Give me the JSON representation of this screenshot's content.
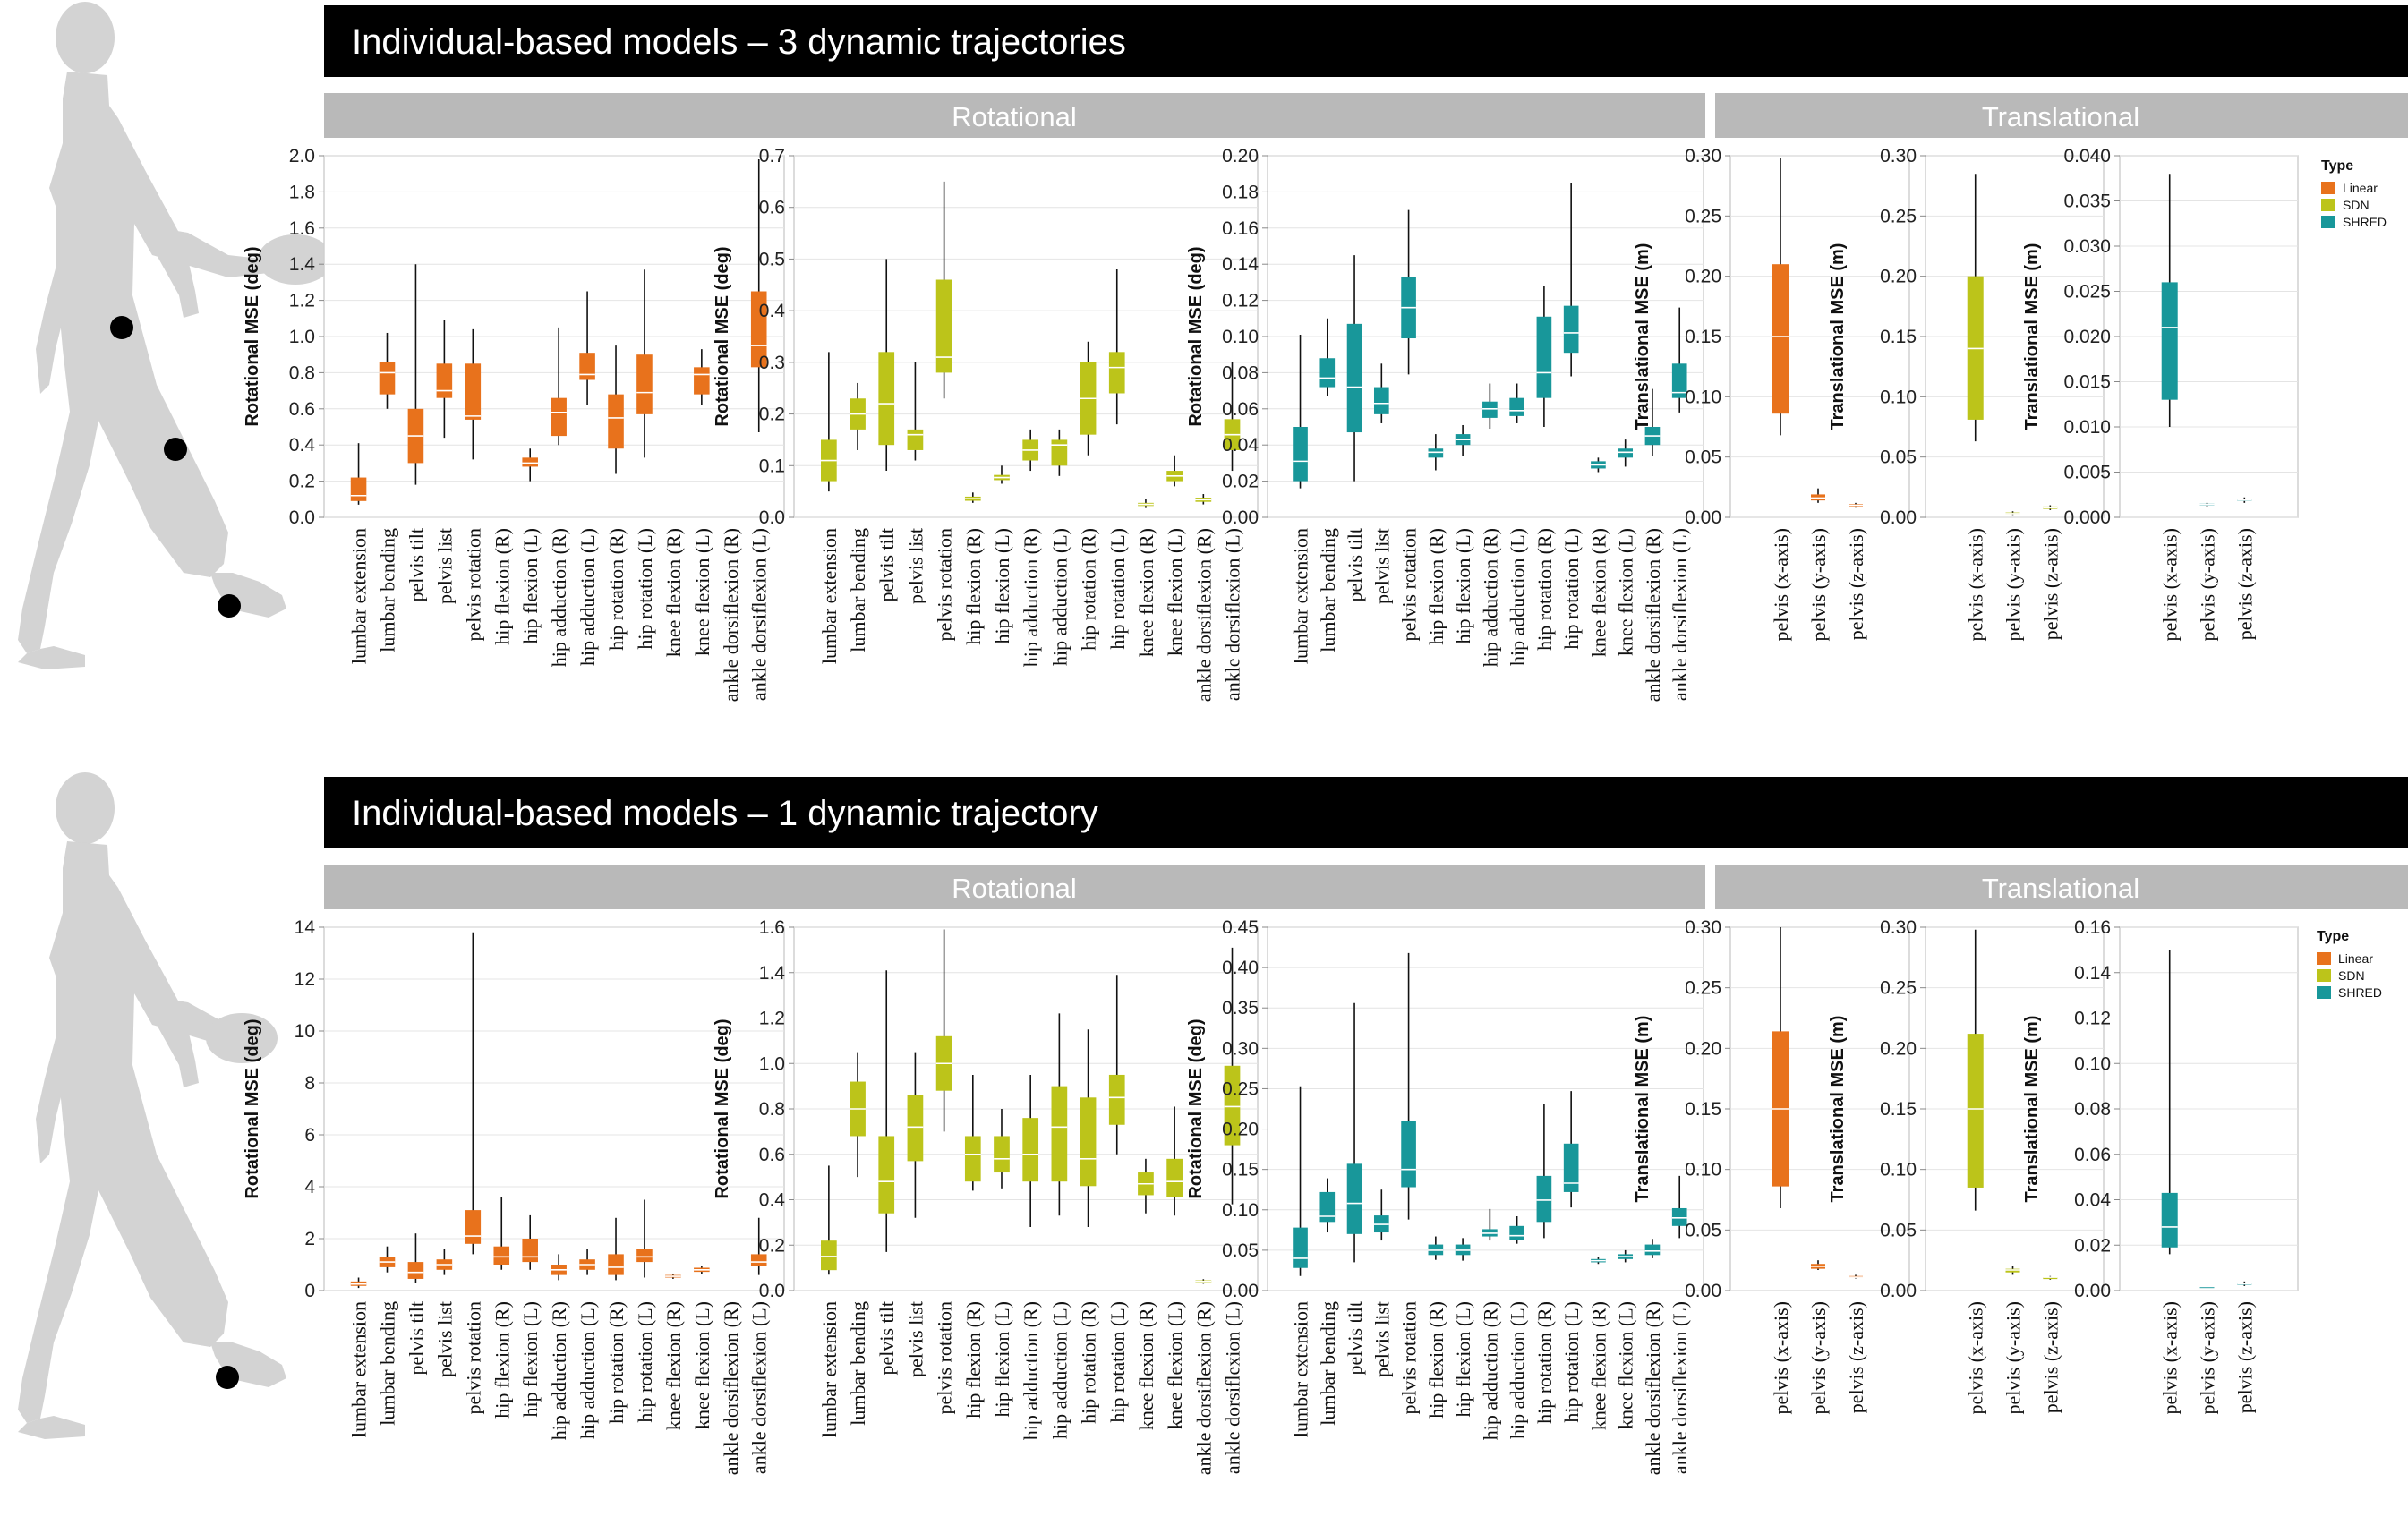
{
  "figure": {
    "title_top": "Individual-based models – 3 dynamic trajectories",
    "title_bottom": "Individual-based models – 1 dynamic trajectory",
    "band_rotational": "Rotational",
    "band_translational": "Translational"
  },
  "legend": {
    "title": "Type",
    "items": [
      {
        "label": "Linear",
        "color": "#E8721C"
      },
      {
        "label": "SDN",
        "color": "#BCC41A"
      },
      {
        "label": "SHRED",
        "color": "#18979A"
      }
    ]
  },
  "colors": {
    "Linear": "#E8721C",
    "SDN": "#BCC41A",
    "SHRED": "#18979A",
    "black_bar": "#000000",
    "gray_band": "#B9B9B9",
    "silhouette": "#D3D3D3"
  },
  "categories_rot": [
    "lumbar extension",
    "lumbar bending",
    "pelvis tilt",
    "pelvis list",
    "pelvis rotation",
    "hip flexion (R)",
    "hip flexion (L)",
    "hip adduction (R)",
    "hip adduction (L)",
    "hip rotation (R)",
    "hip rotation (L)",
    "knee flexion (R)",
    "knee flexion (L)",
    "ankle dorsiflexion (R)",
    "ankle dorsiflexion (L)"
  ],
  "categories_trans": [
    "pelvis (x-axis)",
    "pelvis (y-axis)",
    "pelvis (z-axis)"
  ],
  "chart_data": [
    {
      "type": "box",
      "group": "top",
      "kind": "rotational",
      "model": "Linear",
      "ylabel": "Rotational MSE (deg)",
      "ylim": [
        0,
        2.0
      ],
      "yticks": [
        "0.0",
        "0.2",
        "0.4",
        "0.6",
        "0.8",
        "1.0",
        "1.2",
        "1.4",
        "1.6",
        "1.8",
        "2.0"
      ],
      "boxes": [
        {
          "min": 0.07,
          "q1": 0.09,
          "med": 0.12,
          "q3": 0.22,
          "max": 0.41
        },
        {
          "min": 0.6,
          "q1": 0.68,
          "med": 0.8,
          "q3": 0.86,
          "max": 1.02
        },
        {
          "min": 0.18,
          "q1": 0.3,
          "med": 0.45,
          "q3": 0.6,
          "max": 1.4
        },
        {
          "min": 0.44,
          "q1": 0.66,
          "med": 0.7,
          "q3": 0.85,
          "max": 1.09
        },
        {
          "min": 0.32,
          "q1": 0.54,
          "med": 0.56,
          "q3": 0.85,
          "max": 1.04
        },
        null,
        {
          "min": 0.2,
          "q1": 0.28,
          "med": 0.3,
          "q3": 0.33,
          "max": 0.38
        },
        {
          "min": 0.4,
          "q1": 0.45,
          "med": 0.58,
          "q3": 0.66,
          "max": 1.05
        },
        {
          "min": 0.62,
          "q1": 0.76,
          "med": 0.79,
          "q3": 0.91,
          "max": 1.25
        },
        {
          "min": 0.24,
          "q1": 0.38,
          "med": 0.55,
          "q3": 0.68,
          "max": 0.95
        },
        {
          "min": 0.33,
          "q1": 0.57,
          "med": 0.69,
          "q3": 0.9,
          "max": 1.37
        },
        null,
        {
          "min": 0.62,
          "q1": 0.68,
          "med": 0.79,
          "q3": 0.83,
          "max": 0.93
        },
        null,
        {
          "min": 0.47,
          "q1": 0.83,
          "med": 0.95,
          "q3": 1.25,
          "max": 1.98
        }
      ]
    },
    {
      "type": "box",
      "group": "top",
      "kind": "rotational",
      "model": "SDN",
      "ylabel": "Rotational MSE (deg)",
      "ylim": [
        0,
        0.7
      ],
      "yticks": [
        "0.0",
        "0.1",
        "0.2",
        "0.3",
        "0.4",
        "0.5",
        "0.6",
        "0.7"
      ],
      "boxes": [
        {
          "min": 0.05,
          "q1": 0.07,
          "med": 0.11,
          "q3": 0.15,
          "max": 0.32
        },
        {
          "min": 0.13,
          "q1": 0.17,
          "med": 0.2,
          "q3": 0.23,
          "max": 0.26
        },
        {
          "min": 0.09,
          "q1": 0.14,
          "med": 0.22,
          "q3": 0.32,
          "max": 0.5
        },
        {
          "min": 0.11,
          "q1": 0.13,
          "med": 0.16,
          "q3": 0.17,
          "max": 0.3
        },
        {
          "min": 0.23,
          "q1": 0.28,
          "med": 0.31,
          "q3": 0.46,
          "max": 0.65
        },
        {
          "min": 0.028,
          "q1": 0.032,
          "med": 0.036,
          "q3": 0.04,
          "max": 0.048
        },
        {
          "min": 0.065,
          "q1": 0.072,
          "med": 0.077,
          "q3": 0.082,
          "max": 0.1
        },
        {
          "min": 0.09,
          "q1": 0.11,
          "med": 0.13,
          "q3": 0.15,
          "max": 0.17
        },
        {
          "min": 0.08,
          "q1": 0.1,
          "med": 0.14,
          "q3": 0.15,
          "max": 0.17
        },
        {
          "min": 0.12,
          "q1": 0.16,
          "med": 0.23,
          "q3": 0.3,
          "max": 0.34
        },
        {
          "min": 0.18,
          "q1": 0.24,
          "med": 0.29,
          "q3": 0.32,
          "max": 0.48
        },
        {
          "min": 0.018,
          "q1": 0.022,
          "med": 0.025,
          "q3": 0.028,
          "max": 0.035
        },
        {
          "min": 0.06,
          "q1": 0.07,
          "med": 0.08,
          "q3": 0.09,
          "max": 0.12
        },
        {
          "min": 0.025,
          "q1": 0.03,
          "med": 0.034,
          "q3": 0.038,
          "max": 0.045
        },
        {
          "min": 0.09,
          "q1": 0.13,
          "med": 0.16,
          "q3": 0.19,
          "max": 0.3
        }
      ]
    },
    {
      "type": "box",
      "group": "top",
      "kind": "rotational",
      "model": "SHRED",
      "ylabel": "Rotational MSE (deg)",
      "ylim": [
        0,
        0.2
      ],
      "yticks": [
        "0.00",
        "0.02",
        "0.04",
        "0.06",
        "0.08",
        "0.10",
        "0.12",
        "0.14",
        "0.16",
        "0.18",
        "0.20"
      ],
      "boxes": [
        {
          "min": 0.016,
          "q1": 0.02,
          "med": 0.031,
          "q3": 0.05,
          "max": 0.101
        },
        {
          "min": 0.067,
          "q1": 0.072,
          "med": 0.077,
          "q3": 0.088,
          "max": 0.11
        },
        {
          "min": 0.02,
          "q1": 0.047,
          "med": 0.072,
          "q3": 0.107,
          "max": 0.145
        },
        {
          "min": 0.052,
          "q1": 0.057,
          "med": 0.063,
          "q3": 0.072,
          "max": 0.085
        },
        {
          "min": 0.079,
          "q1": 0.099,
          "med": 0.116,
          "q3": 0.133,
          "max": 0.17
        },
        {
          "min": 0.026,
          "q1": 0.033,
          "med": 0.036,
          "q3": 0.038,
          "max": 0.046
        },
        {
          "min": 0.034,
          "q1": 0.04,
          "med": 0.043,
          "q3": 0.046,
          "max": 0.051
        },
        {
          "min": 0.049,
          "q1": 0.055,
          "med": 0.06,
          "q3": 0.064,
          "max": 0.074
        },
        {
          "min": 0.052,
          "q1": 0.056,
          "med": 0.059,
          "q3": 0.066,
          "max": 0.074
        },
        {
          "min": 0.05,
          "q1": 0.066,
          "med": 0.08,
          "q3": 0.111,
          "max": 0.128
        },
        {
          "min": 0.078,
          "q1": 0.091,
          "med": 0.102,
          "q3": 0.117,
          "max": 0.185
        },
        {
          "min": 0.025,
          "q1": 0.027,
          "med": 0.029,
          "q3": 0.031,
          "max": 0.033
        },
        {
          "min": 0.028,
          "q1": 0.033,
          "med": 0.036,
          "q3": 0.038,
          "max": 0.043
        },
        {
          "min": 0.034,
          "q1": 0.04,
          "med": 0.045,
          "q3": 0.05,
          "max": 0.071
        },
        {
          "min": 0.058,
          "q1": 0.066,
          "med": 0.069,
          "q3": 0.085,
          "max": 0.116
        }
      ]
    },
    {
      "type": "box",
      "group": "top",
      "kind": "translational",
      "model": "Linear",
      "ylabel": "Translational MSE (m)",
      "ylim": [
        0,
        0.3
      ],
      "yticks": [
        "0.00",
        "0.05",
        "0.10",
        "0.15",
        "0.20",
        "0.25",
        "0.30"
      ],
      "boxes": [
        {
          "min": 0.068,
          "q1": 0.086,
          "med": 0.15,
          "q3": 0.21,
          "max": 0.298
        },
        {
          "min": 0.012,
          "q1": 0.014,
          "med": 0.016,
          "q3": 0.019,
          "max": 0.024
        },
        {
          "min": 0.008,
          "q1": 0.009,
          "med": 0.01,
          "q3": 0.011,
          "max": 0.012
        }
      ]
    },
    {
      "type": "box",
      "group": "top",
      "kind": "translational",
      "model": "SDN",
      "ylabel": "Translational MSE (m)",
      "ylim": [
        0,
        0.3
      ],
      "yticks": [
        "0.00",
        "0.05",
        "0.10",
        "0.15",
        "0.20",
        "0.25",
        "0.30"
      ],
      "boxes": [
        {
          "min": 0.063,
          "q1": 0.081,
          "med": 0.14,
          "q3": 0.2,
          "max": 0.285
        },
        {
          "min": 0.002,
          "q1": 0.003,
          "med": 0.003,
          "q3": 0.004,
          "max": 0.005
        },
        {
          "min": 0.006,
          "q1": 0.007,
          "med": 0.008,
          "q3": 0.009,
          "max": 0.01
        }
      ]
    },
    {
      "type": "box",
      "group": "top",
      "kind": "translational",
      "model": "SHRED",
      "ylabel": "Translational MSE (m)",
      "ylim": [
        0,
        0.04
      ],
      "yticks": [
        "0.000",
        "0.005",
        "0.010",
        "0.015",
        "0.020",
        "0.025",
        "0.030",
        "0.035",
        "0.040"
      ],
      "boxes": [
        {
          "min": 0.01,
          "q1": 0.013,
          "med": 0.021,
          "q3": 0.026,
          "max": 0.038
        },
        {
          "min": 0.0012,
          "q1": 0.0013,
          "med": 0.0014,
          "q3": 0.0015,
          "max": 0.0016
        },
        {
          "min": 0.0016,
          "q1": 0.0018,
          "med": 0.0019,
          "q3": 0.002,
          "max": 0.0022
        }
      ]
    },
    {
      "type": "box",
      "group": "bottom",
      "kind": "rotational",
      "model": "Linear",
      "ylabel": "Rotational MSE (deg)",
      "ylim": [
        0,
        14
      ],
      "yticks": [
        "0",
        "2",
        "4",
        "6",
        "8",
        "10",
        "12",
        "14"
      ],
      "boxes": [
        {
          "min": 0.1,
          "q1": 0.18,
          "med": 0.25,
          "q3": 0.35,
          "max": 0.5
        },
        {
          "min": 0.7,
          "q1": 0.9,
          "med": 1.1,
          "q3": 1.3,
          "max": 1.7
        },
        {
          "min": 0.3,
          "q1": 0.45,
          "med": 0.7,
          "q3": 1.1,
          "max": 2.2
        },
        {
          "min": 0.6,
          "q1": 0.8,
          "med": 1.0,
          "q3": 1.2,
          "max": 1.6
        },
        {
          "min": 1.4,
          "q1": 1.8,
          "med": 2.1,
          "q3": 3.1,
          "max": 13.8
        },
        {
          "min": 0.8,
          "q1": 1.0,
          "med": 1.3,
          "q3": 1.7,
          "max": 3.6
        },
        {
          "min": 0.8,
          "q1": 1.1,
          "med": 1.3,
          "q3": 2.0,
          "max": 2.9
        },
        {
          "min": 0.4,
          "q1": 0.6,
          "med": 0.8,
          "q3": 1.0,
          "max": 1.4
        },
        {
          "min": 0.6,
          "q1": 0.8,
          "med": 1.0,
          "q3": 1.2,
          "max": 1.6
        },
        {
          "min": 0.4,
          "q1": 0.6,
          "med": 0.9,
          "q3": 1.4,
          "max": 2.8
        },
        {
          "min": 0.5,
          "q1": 1.1,
          "med": 1.3,
          "q3": 1.6,
          "max": 3.5
        },
        {
          "min": 0.45,
          "q1": 0.5,
          "med": 0.55,
          "q3": 0.6,
          "max": 0.65
        },
        {
          "min": 0.65,
          "q1": 0.72,
          "med": 0.8,
          "q3": 0.88,
          "max": 0.95
        },
        null,
        {
          "min": 0.6,
          "q1": 0.95,
          "med": 1.1,
          "q3": 1.4,
          "max": 2.8
        }
      ]
    },
    {
      "type": "box",
      "group": "bottom",
      "kind": "rotational",
      "model": "SDN",
      "ylabel": "Rotational MSE (deg)",
      "ylim": [
        0,
        1.6
      ],
      "yticks": [
        "0.0",
        "0.2",
        "0.4",
        "0.6",
        "0.8",
        "1.0",
        "1.2",
        "1.4",
        "1.6"
      ],
      "boxes": [
        {
          "min": 0.07,
          "q1": 0.09,
          "med": 0.15,
          "q3": 0.22,
          "max": 0.55
        },
        {
          "min": 0.5,
          "q1": 0.68,
          "med": 0.8,
          "q3": 0.92,
          "max": 1.05
        },
        {
          "min": 0.17,
          "q1": 0.34,
          "med": 0.48,
          "q3": 0.68,
          "max": 1.41
        },
        {
          "min": 0.32,
          "q1": 0.57,
          "med": 0.72,
          "q3": 0.86,
          "max": 1.05
        },
        {
          "min": 0.7,
          "q1": 0.88,
          "med": 1.0,
          "q3": 1.12,
          "max": 1.59
        },
        {
          "min": 0.44,
          "q1": 0.48,
          "med": 0.6,
          "q3": 0.68,
          "max": 0.95
        },
        {
          "min": 0.45,
          "q1": 0.52,
          "med": 0.58,
          "q3": 0.68,
          "max": 0.8
        },
        {
          "min": 0.28,
          "q1": 0.48,
          "med": 0.6,
          "q3": 0.76,
          "max": 0.95
        },
        {
          "min": 0.33,
          "q1": 0.48,
          "med": 0.72,
          "q3": 0.9,
          "max": 1.22
        },
        {
          "min": 0.28,
          "q1": 0.46,
          "med": 0.58,
          "q3": 0.85,
          "max": 1.15
        },
        {
          "min": 0.6,
          "q1": 0.73,
          "med": 0.85,
          "q3": 0.95,
          "max": 1.39
        },
        {
          "min": 0.34,
          "q1": 0.42,
          "med": 0.47,
          "q3": 0.52,
          "max": 0.58
        },
        {
          "min": 0.33,
          "q1": 0.41,
          "med": 0.48,
          "q3": 0.58,
          "max": 0.81
        },
        {
          "min": 0.03,
          "q1": 0.035,
          "med": 0.04,
          "q3": 0.045,
          "max": 0.05
        },
        {
          "min": 0.38,
          "q1": 0.64,
          "med": 0.81,
          "q3": 0.99,
          "max": 1.51
        }
      ]
    },
    {
      "type": "box",
      "group": "bottom",
      "kind": "rotational",
      "model": "SHRED",
      "ylabel": "Rotational MSE (deg)",
      "ylim": [
        0,
        0.45
      ],
      "yticks": [
        "0.00",
        "0.05",
        "0.10",
        "0.15",
        "0.20",
        "0.25",
        "0.30",
        "0.35",
        "0.40",
        "0.45"
      ],
      "boxes": [
        {
          "min": 0.018,
          "q1": 0.028,
          "med": 0.04,
          "q3": 0.078,
          "max": 0.253
        },
        {
          "min": 0.072,
          "q1": 0.085,
          "med": 0.092,
          "q3": 0.122,
          "max": 0.139
        },
        {
          "min": 0.035,
          "q1": 0.07,
          "med": 0.108,
          "q3": 0.157,
          "max": 0.356
        },
        {
          "min": 0.062,
          "q1": 0.072,
          "med": 0.082,
          "q3": 0.093,
          "max": 0.125
        },
        {
          "min": 0.088,
          "q1": 0.128,
          "med": 0.15,
          "q3": 0.21,
          "max": 0.418
        },
        {
          "min": 0.038,
          "q1": 0.044,
          "med": 0.05,
          "q3": 0.057,
          "max": 0.067
        },
        {
          "min": 0.037,
          "q1": 0.044,
          "med": 0.05,
          "q3": 0.057,
          "max": 0.065
        },
        {
          "min": 0.062,
          "q1": 0.067,
          "med": 0.071,
          "q3": 0.076,
          "max": 0.101
        },
        {
          "min": 0.058,
          "q1": 0.063,
          "med": 0.068,
          "q3": 0.08,
          "max": 0.092
        },
        {
          "min": 0.065,
          "q1": 0.085,
          "med": 0.112,
          "q3": 0.142,
          "max": 0.231
        },
        {
          "min": 0.103,
          "q1": 0.122,
          "med": 0.133,
          "q3": 0.182,
          "max": 0.247
        },
        {
          "min": 0.033,
          "q1": 0.035,
          "med": 0.037,
          "q3": 0.039,
          "max": 0.041
        },
        {
          "min": 0.035,
          "q1": 0.039,
          "med": 0.042,
          "q3": 0.045,
          "max": 0.05
        },
        {
          "min": 0.04,
          "q1": 0.044,
          "med": 0.049,
          "q3": 0.057,
          "max": 0.064
        },
        {
          "min": 0.065,
          "q1": 0.08,
          "med": 0.09,
          "q3": 0.102,
          "max": 0.142
        }
      ]
    },
    {
      "type": "box",
      "group": "bottom",
      "kind": "translational",
      "model": "Linear",
      "ylabel": "Translational MSE (m)",
      "ylim": [
        0,
        0.3
      ],
      "yticks": [
        "0.00",
        "0.05",
        "0.10",
        "0.15",
        "0.20",
        "0.25",
        "0.30"
      ],
      "boxes": [
        {
          "min": 0.068,
          "q1": 0.086,
          "med": 0.15,
          "q3": 0.214,
          "max": 0.3
        },
        {
          "min": 0.017,
          "q1": 0.018,
          "med": 0.02,
          "q3": 0.022,
          "max": 0.025
        },
        {
          "min": 0.01,
          "q1": 0.0105,
          "med": 0.011,
          "q3": 0.012,
          "max": 0.013
        }
      ]
    },
    {
      "type": "box",
      "group": "bottom",
      "kind": "translational",
      "model": "SDN",
      "ylabel": "Translational MSE (m)",
      "ylim": [
        0,
        0.3
      ],
      "yticks": [
        "0.00",
        "0.05",
        "0.10",
        "0.15",
        "0.20",
        "0.25",
        "0.30"
      ],
      "boxes": [
        {
          "min": 0.066,
          "q1": 0.085,
          "med": 0.15,
          "q3": 0.212,
          "max": 0.298
        },
        {
          "min": 0.013,
          "q1": 0.015,
          "med": 0.017,
          "q3": 0.018,
          "max": 0.02
        },
        {
          "min": 0.009,
          "q1": 0.01,
          "med": 0.011,
          "q3": 0.011,
          "max": 0.012
        }
      ]
    },
    {
      "type": "box",
      "group": "bottom",
      "kind": "translational",
      "model": "SHRED",
      "ylabel": "Translational MSE (m)",
      "ylim": [
        0,
        0.16
      ],
      "yticks": [
        "0.00",
        "0.02",
        "0.04",
        "0.06",
        "0.08",
        "0.10",
        "0.12",
        "0.14",
        "0.16"
      ],
      "boxes": [
        {
          "min": 0.016,
          "q1": 0.019,
          "med": 0.028,
          "q3": 0.043,
          "max": 0.15
        },
        {
          "min": 0.0015,
          "q1": 0.0017,
          "med": 0.0018,
          "q3": 0.0019,
          "max": 0.002
        },
        {
          "min": 0.002,
          "q1": 0.0025,
          "med": 0.003,
          "q3": 0.0035,
          "max": 0.004
        }
      ]
    }
  ]
}
